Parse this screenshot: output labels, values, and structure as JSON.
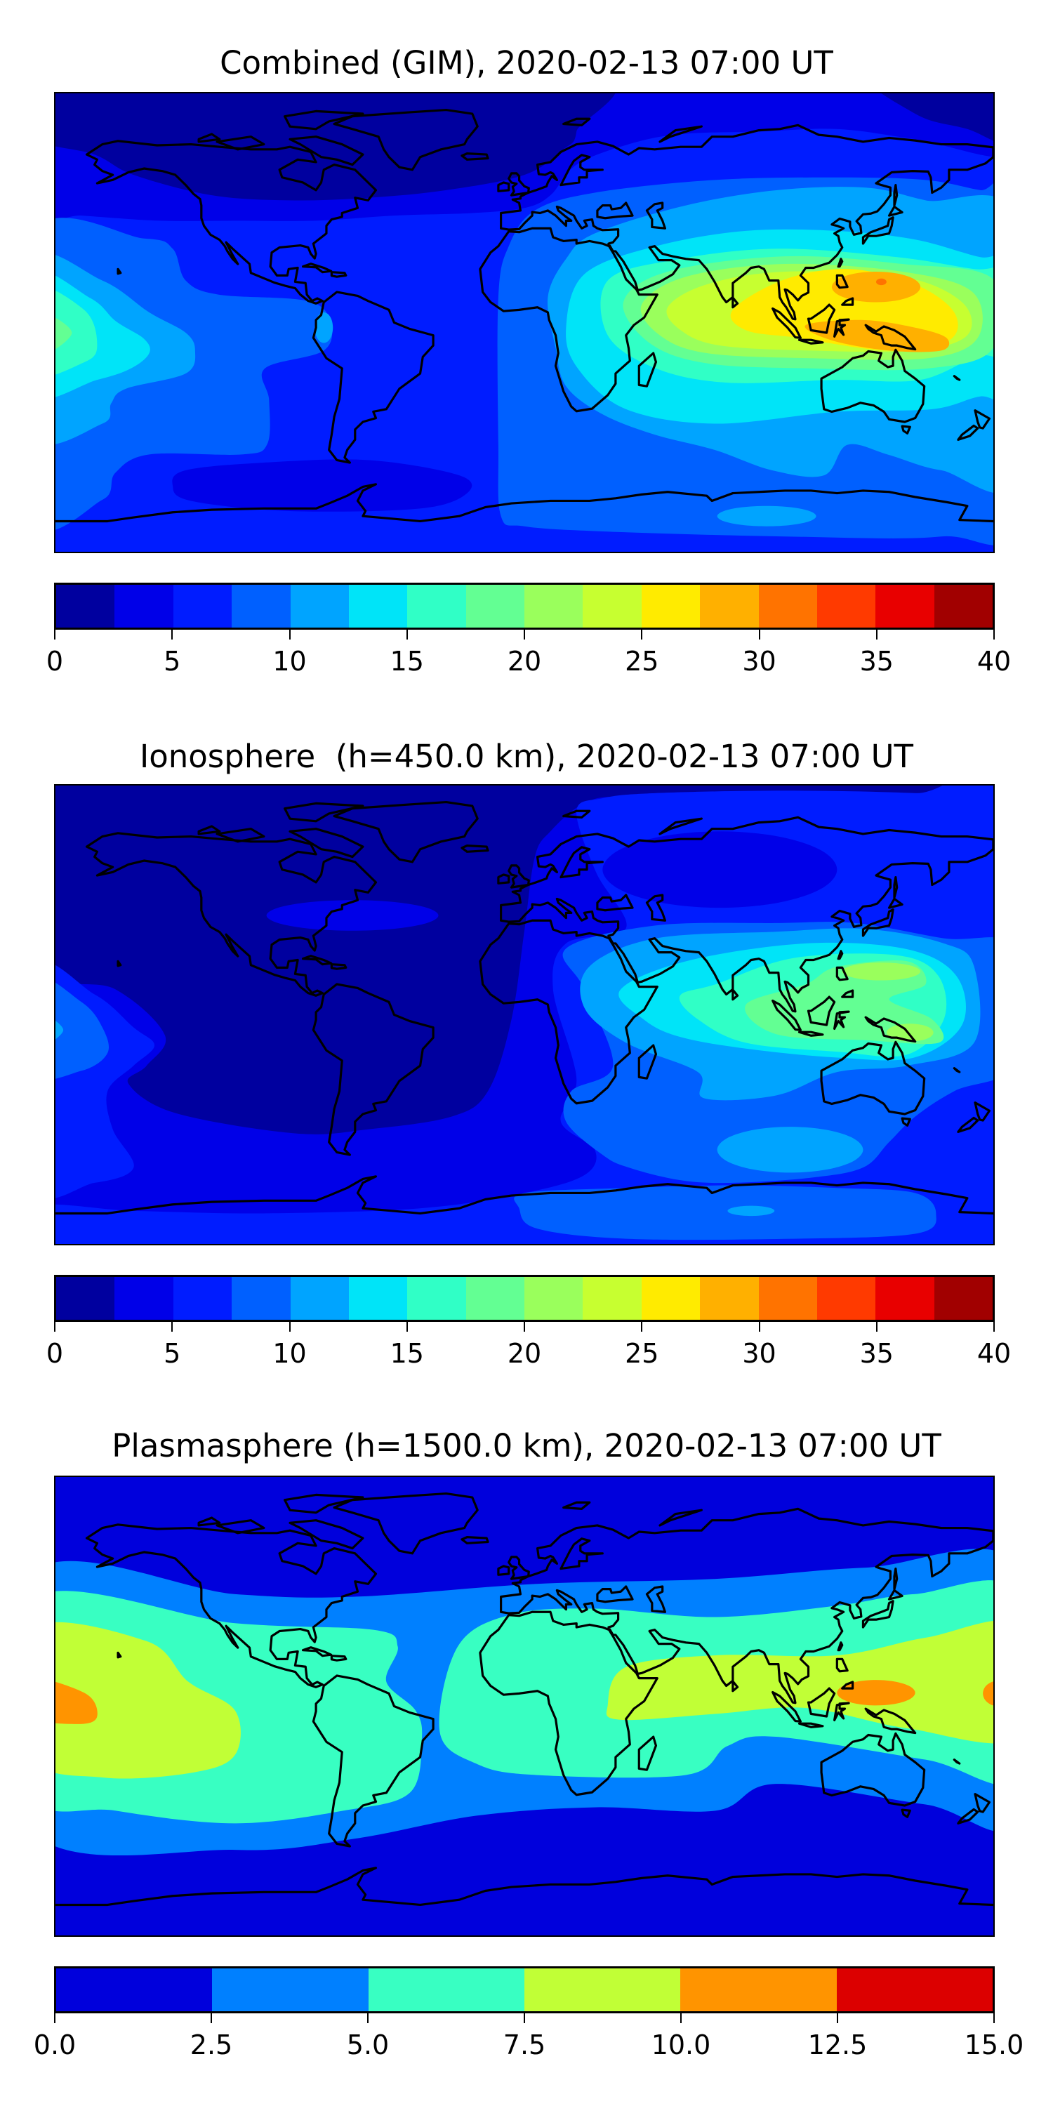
{
  "chart_data": [
    {
      "type": "heatmap",
      "title": "Combined (GIM), 2020-02-13 07:00 UT",
      "map_extent": {
        "lon": [
          -180,
          180
        ],
        "lat": [
          -90,
          90
        ]
      },
      "colorbar": {
        "range": [
          0,
          40
        ],
        "levels": [
          0,
          2.5,
          5,
          7.5,
          10,
          12.5,
          15,
          17.5,
          20,
          22.5,
          25,
          27.5,
          30,
          32.5,
          35,
          37.5,
          40
        ],
        "colors": [
          "#00009f",
          "#0000e8",
          "#001cff",
          "#0060ff",
          "#00a4ff",
          "#00e4f8",
          "#30ffc6",
          "#63ff93",
          "#9aff5c",
          "#c7ff30",
          "#ffeb00",
          "#ffb000",
          "#ff7300",
          "#ff3a00",
          "#e80000",
          "#a10000"
        ],
        "tick_values": [
          0,
          5,
          10,
          15,
          20,
          25,
          30,
          35,
          40
        ],
        "tick_labels": [
          "0",
          "5",
          "10",
          "15",
          "20",
          "25",
          "30",
          "35",
          "40"
        ]
      },
      "background_level": 2
    },
    {
      "type": "heatmap",
      "title": "Ionosphere  (h=450.0 km), 2020-02-13 07:00 UT",
      "map_extent": {
        "lon": [
          -180,
          180
        ],
        "lat": [
          -90,
          90
        ]
      },
      "colorbar": {
        "range": [
          0,
          40
        ],
        "levels": [
          0,
          2.5,
          5,
          7.5,
          10,
          12.5,
          15,
          17.5,
          20,
          22.5,
          25,
          27.5,
          30,
          32.5,
          35,
          37.5,
          40
        ],
        "colors": [
          "#00009f",
          "#0000e8",
          "#001cff",
          "#0060ff",
          "#00a4ff",
          "#00e4f8",
          "#30ffc6",
          "#63ff93",
          "#9aff5c",
          "#c7ff30",
          "#ffeb00",
          "#ffb000",
          "#ff7300",
          "#ff3a00",
          "#e80000",
          "#a10000"
        ],
        "tick_values": [
          0,
          5,
          10,
          15,
          20,
          25,
          30,
          35,
          40
        ],
        "tick_labels": [
          "0",
          "5",
          "10",
          "15",
          "20",
          "25",
          "30",
          "35",
          "40"
        ]
      },
      "background_level": 1
    },
    {
      "type": "heatmap",
      "title": "Plasmasphere (h=1500.0 km), 2020-02-13 07:00 UT",
      "map_extent": {
        "lon": [
          -180,
          180
        ],
        "lat": [
          -90,
          90
        ]
      },
      "colorbar": {
        "range": [
          0,
          15
        ],
        "levels": [
          0,
          2.5,
          5,
          7.5,
          10,
          12.5,
          15
        ],
        "colors": [
          "#0000dc",
          "#0080ff",
          "#38ffc2",
          "#c1ff36",
          "#ff9400",
          "#dc0000"
        ],
        "tick_values": [
          0,
          2.5,
          5,
          7.5,
          10,
          12.5,
          15
        ],
        "tick_labels": [
          "0.0",
          "2.5",
          "5.0",
          "7.5",
          "10.0",
          "12.5",
          "15.0"
        ]
      },
      "background_level": 0
    }
  ]
}
